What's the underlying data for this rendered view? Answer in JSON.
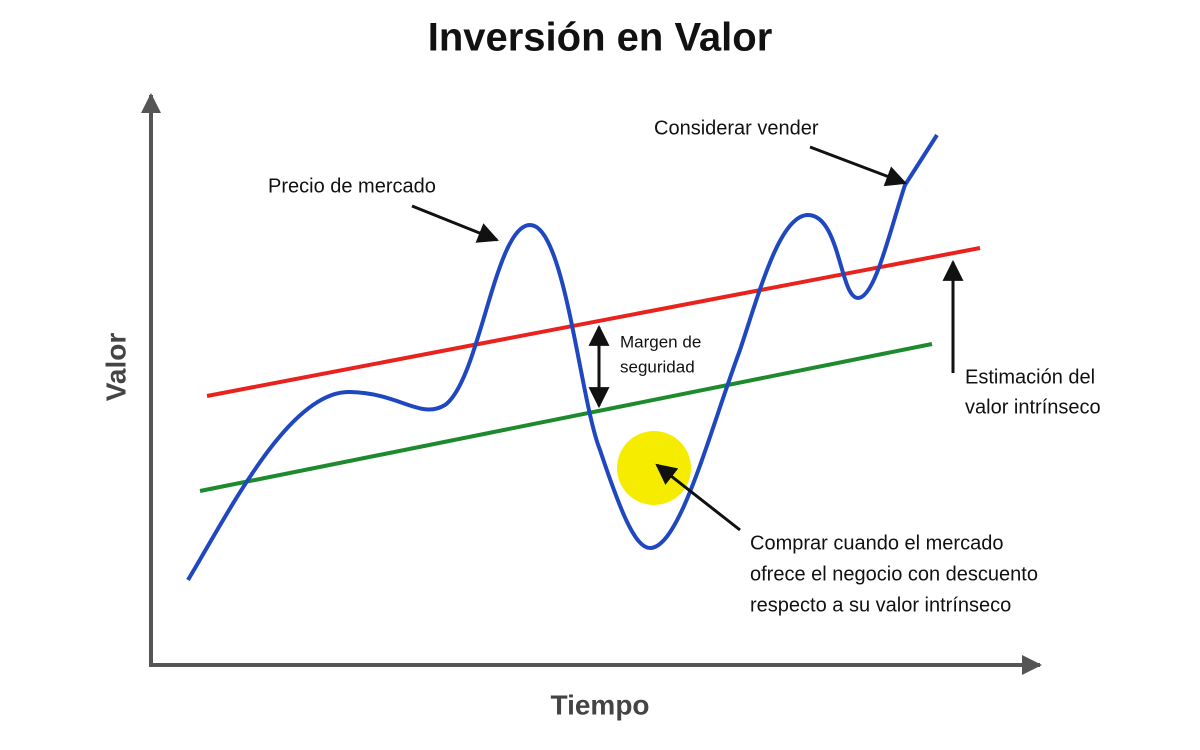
{
  "title": "Inversión en Valor",
  "axes": {
    "x_label": "Tiempo",
    "y_label": "Valor"
  },
  "annotations": {
    "market_price": "Precio de mercado",
    "sell": "Considerar vender",
    "margin": [
      "Margen de",
      "seguridad"
    ],
    "intrinsic": [
      "Estimación del",
      "valor intrínseco"
    ],
    "buy": [
      "Comprar cuando el mercado",
      "ofrece el negocio con descuento",
      "respecto a su valor intrínseco"
    ]
  }
}
